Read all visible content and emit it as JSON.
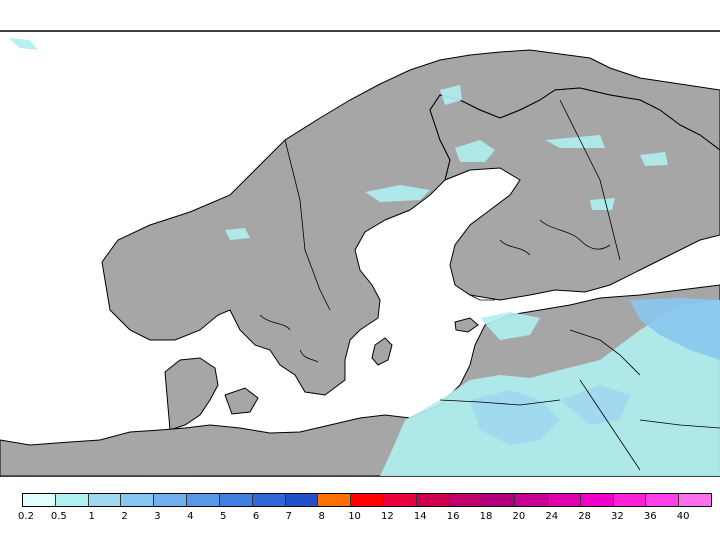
{
  "map": {
    "region": "Scandinavia / Baltic",
    "colors": {
      "land": "#a6a6a6",
      "sea": "#ffffff",
      "border": "#000000"
    }
  },
  "legend": {
    "levels": [
      "0.2",
      "0.5",
      "1",
      "2",
      "3",
      "4",
      "5",
      "6",
      "7",
      "8",
      "10",
      "12",
      "14",
      "16",
      "18",
      "20",
      "24",
      "28",
      "32",
      "36",
      "40"
    ],
    "colors": [
      "#e0ffff",
      "#b0f0f0",
      "#a0d8f0",
      "#88c8f0",
      "#70b0f0",
      "#5898e8",
      "#4080e0",
      "#3068d8",
      "#2050c8",
      "#ff7000",
      "#ff0000",
      "#e8003c",
      "#d00050",
      "#c0006c",
      "#b00080",
      "#c80098",
      "#e000b0",
      "#f000c8",
      "#ff20d8",
      "#ff40e8",
      "#ff70f0"
    ]
  }
}
